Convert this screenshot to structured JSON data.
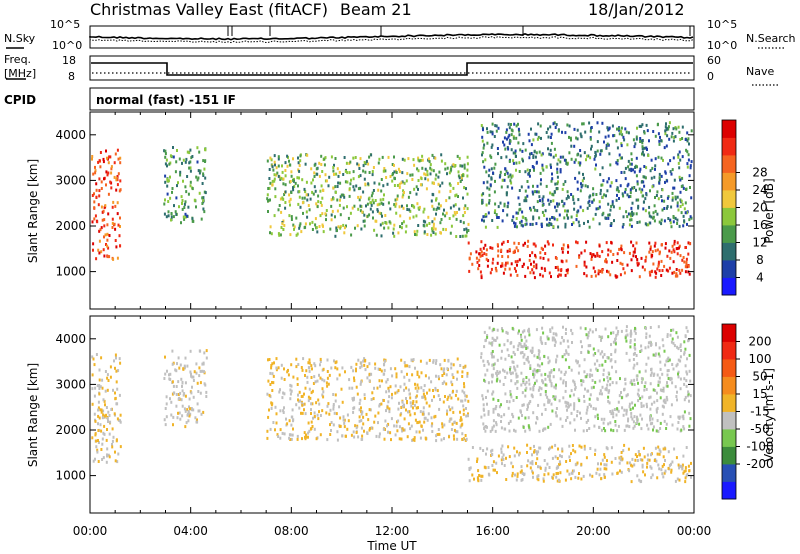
{
  "header": {
    "title": "Christmas Valley East (fitACF)",
    "beam": "Beam 21",
    "date": "18/Jan/2012"
  },
  "noise_panel": {
    "left_label": "N.Sky",
    "right_label": "N.Search",
    "left_ticks": [
      "10^5",
      "10^0"
    ],
    "right_ticks": [
      "10^5",
      "10^0"
    ]
  },
  "freq_panel": {
    "left_label_1": "Freq.",
    "left_label_2": "[MHz]",
    "right_label": "Nave",
    "left_ticks": [
      "18",
      "8"
    ],
    "right_ticks": [
      "60",
      "0"
    ]
  },
  "cpid": {
    "label": "CPID",
    "value": "normal (fast) -151 IF"
  },
  "chart_data": [
    {
      "type": "heatmap",
      "title": "",
      "xlabel": "Time UT",
      "ylabel": "Slant Range [km]",
      "x_ticks": [
        "00:00",
        "04:00",
        "08:00",
        "12:00",
        "16:00",
        "20:00",
        "00:00"
      ],
      "y_ticks": [
        "1000",
        "2000",
        "3000",
        "4000"
      ],
      "xlim": [
        0,
        24
      ],
      "ylim": [
        180,
        4500
      ],
      "colorbar": {
        "label": "Power [dB]",
        "ticks": [
          "4",
          "8",
          "12",
          "16",
          "20",
          "24",
          "28"
        ],
        "range": [
          0,
          30
        ],
        "colors": [
          "#1a1aff",
          "#1e3fa8",
          "#2e6e6e",
          "#4a9a4a",
          "#8cc83c",
          "#f0c83c",
          "#f59a28",
          "#f56420",
          "#f02a14",
          "#dc0000"
        ]
      },
      "features": [
        {
          "name": "early-arc",
          "t": [
            0.0,
            1.2
          ],
          "range": [
            1300,
            3700
          ],
          "value": 24
        },
        {
          "name": "dawn-patches",
          "t": [
            2.9,
            4.6
          ],
          "range": [
            2100,
            3800
          ],
          "value": 10
        },
        {
          "name": "mid-band",
          "t": [
            7.0,
            15.0
          ],
          "range": [
            1800,
            3600
          ],
          "value": 12
        },
        {
          "name": "late-strong-echo",
          "t": [
            15.0,
            24.0
          ],
          "range": [
            900,
            1700
          ],
          "value": 26
        },
        {
          "name": "late-upper-scatter",
          "t": [
            15.5,
            24.0
          ],
          "range": [
            2000,
            4300
          ],
          "value": 8
        }
      ]
    },
    {
      "type": "heatmap",
      "title": "",
      "xlabel": "Time UT",
      "ylabel": "Slant Range [km]",
      "x_ticks": [
        "00:00",
        "04:00",
        "08:00",
        "12:00",
        "16:00",
        "20:00",
        "00:00"
      ],
      "y_ticks": [
        "1000",
        "2000",
        "3000",
        "4000"
      ],
      "xlim": [
        0,
        24
      ],
      "ylim": [
        180,
        4500
      ],
      "colorbar": {
        "label": "Velocity [m s-1]",
        "ticks": [
          "200",
          "100",
          "50",
          "15",
          "-15",
          "-50",
          "-100",
          "-200"
        ],
        "range": [
          -250,
          250
        ],
        "colors": [
          "#1a1aff",
          "#2850b4",
          "#3c8c3c",
          "#78c850",
          "#c0c0c0",
          "#f0b428",
          "#f58c1e",
          "#f55a14",
          "#f02a14",
          "#dc0000"
        ]
      },
      "features": [
        {
          "name": "early-arc",
          "t": [
            0.0,
            1.2
          ],
          "range": [
            1300,
            3700
          ],
          "value": 0
        },
        {
          "name": "dawn-patches",
          "t": [
            2.9,
            4.6
          ],
          "range": [
            2100,
            3800
          ],
          "value": -20
        },
        {
          "name": "mid-band",
          "t": [
            7.0,
            15.0
          ],
          "range": [
            1800,
            3600
          ],
          "value": 0
        },
        {
          "name": "late-ground-scatter",
          "t": [
            15.0,
            24.0
          ],
          "range": [
            900,
            1700
          ],
          "value": 0
        },
        {
          "name": "late-upper-scatter",
          "t": [
            15.5,
            24.0
          ],
          "range": [
            2000,
            4300
          ],
          "value": -30
        }
      ]
    }
  ]
}
